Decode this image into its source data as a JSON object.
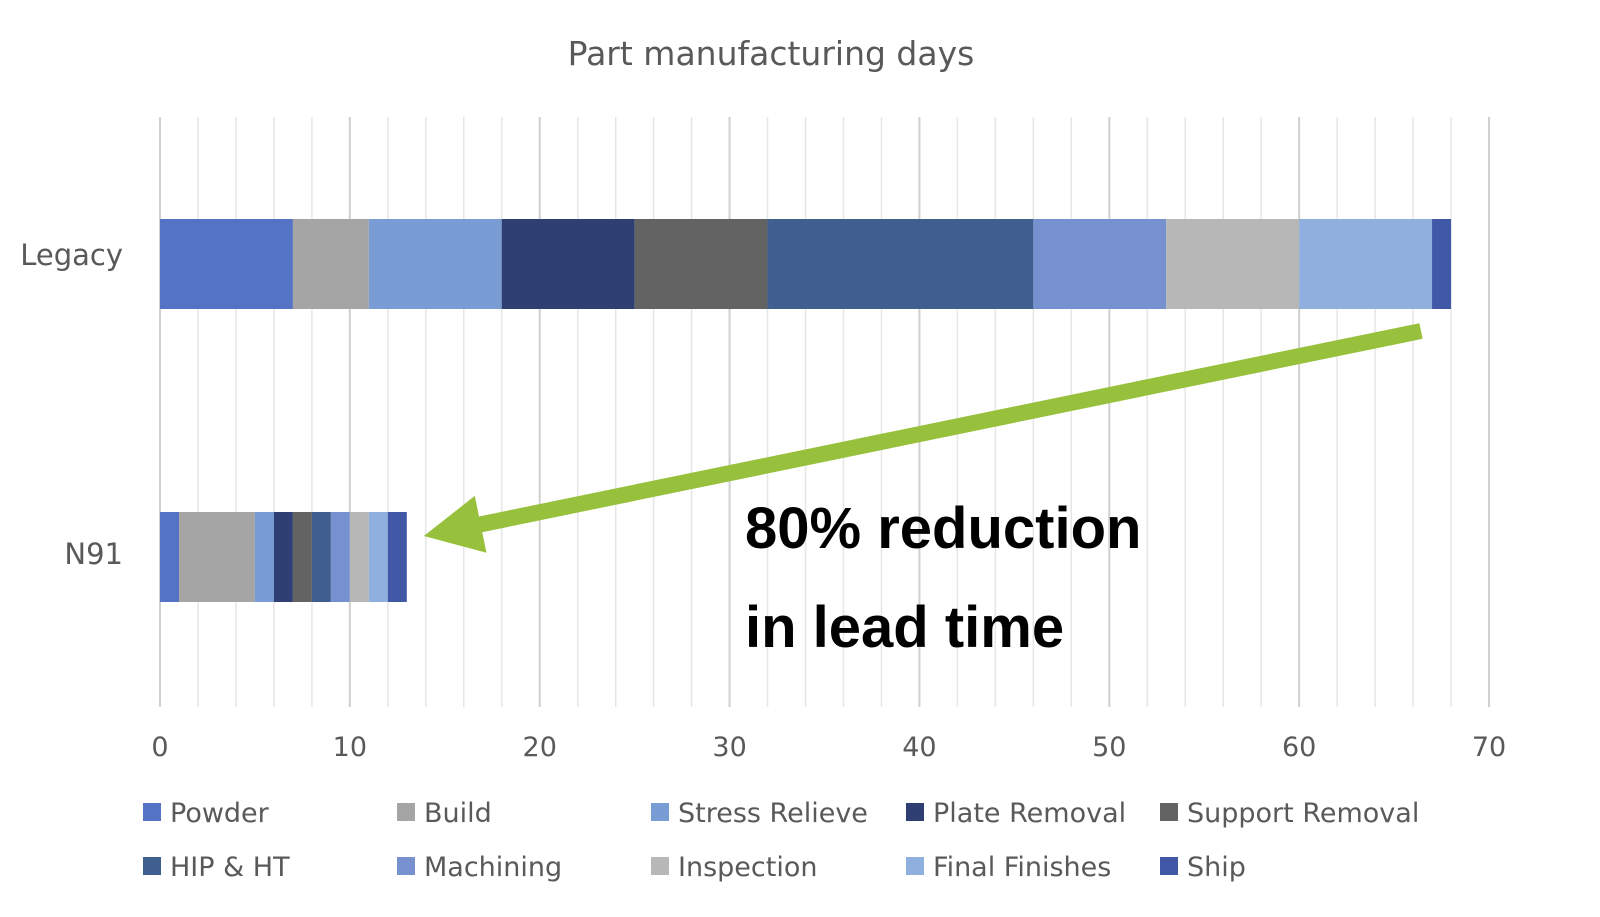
{
  "chart_data": {
    "type": "bar",
    "orientation": "horizontal",
    "stacked": true,
    "title": "Part manufacturing days",
    "categories": [
      "Legacy",
      "N91"
    ],
    "xlim": [
      0,
      70
    ],
    "x_ticks": [
      "0",
      "10",
      "20",
      "30",
      "40",
      "50",
      "60",
      "70"
    ],
    "grid": true,
    "legend_position": "bottom",
    "series": [
      {
        "name": "Powder",
        "color": "#5573C4",
        "values": [
          7,
          1
        ]
      },
      {
        "name": "Build",
        "color": "#A5A5A5",
        "values": [
          4,
          4
        ]
      },
      {
        "name": "Stress Relieve",
        "color": "#799CD4",
        "values": [
          7,
          1
        ]
      },
      {
        "name": "Plate Removal",
        "color": "#2F3F73",
        "values": [
          7,
          1
        ]
      },
      {
        "name": "Support Removal",
        "color": "#636363",
        "values": [
          7,
          1
        ]
      },
      {
        "name": "HIP & HT",
        "color": "#3E5F8F",
        "values": [
          14,
          1
        ]
      },
      {
        "name": "Machining",
        "color": "#7690D0",
        "values": [
          7,
          1
        ]
      },
      {
        "name": "Inspection",
        "color": "#B7B7B7",
        "values": [
          7,
          1
        ]
      },
      {
        "name": "Final Finishes",
        "color": "#8FB0DE",
        "values": [
          7,
          1
        ]
      },
      {
        "name": "Ship",
        "color": "#4158A6",
        "values": [
          1,
          1
        ]
      }
    ],
    "annotation": {
      "lines": [
        "80% reduction",
        "in lead time"
      ],
      "arrow_color": "#97C13C",
      "arrow_from_category": "Legacy",
      "arrow_to_category": "N91"
    }
  }
}
